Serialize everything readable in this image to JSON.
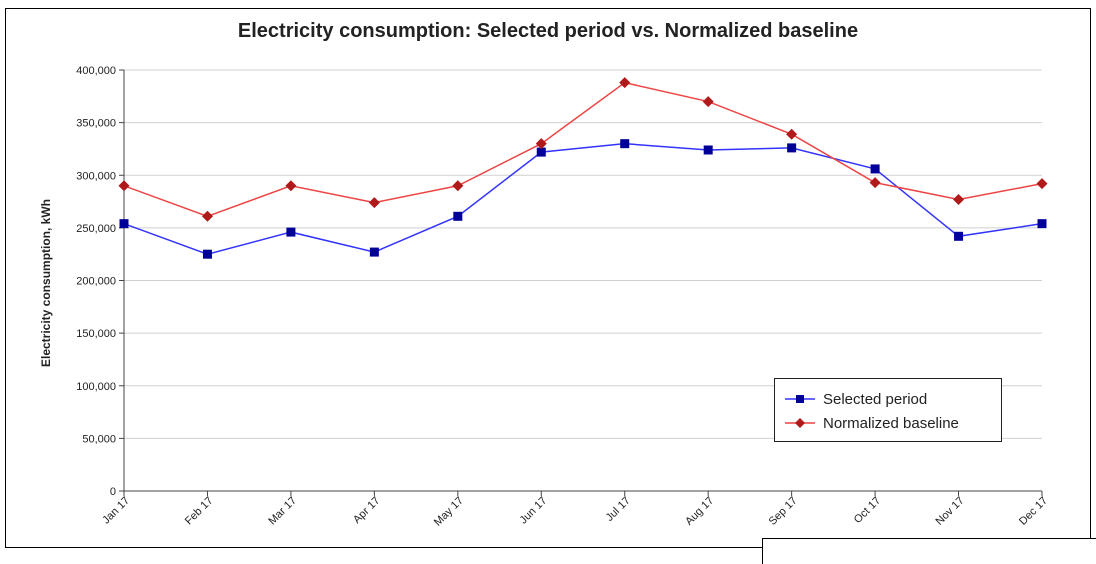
{
  "chart_data": {
    "type": "line",
    "title": "Electricity consumption: Selected period vs. Normalized baseline",
    "xlabel": "",
    "ylabel": "Electricity consumption, kWh",
    "categories": [
      "Jan 17",
      "Feb 17",
      "Mar 17",
      "Apr 17",
      "May 17",
      "Jun 17",
      "Jul 17",
      "Aug 17",
      "Sep 17",
      "Oct 17",
      "Nov 17",
      "Dec 17"
    ],
    "ylim": [
      0,
      400000
    ],
    "yticks": [
      0,
      50000,
      100000,
      150000,
      200000,
      250000,
      300000,
      350000,
      400000
    ],
    "ytick_labels": [
      "0",
      "50,000",
      "100,000",
      "150,000",
      "200,000",
      "250,000",
      "300,000",
      "350,000",
      "400,000"
    ],
    "grid": true,
    "legend_position": "bottom-right",
    "series": [
      {
        "name": "Selected period",
        "color": "#3333ff",
        "marker_color": "#000099",
        "marker": "square",
        "values": [
          254000,
          225000,
          246000,
          227000,
          261000,
          322000,
          330000,
          324000,
          326000,
          306000,
          242000,
          254000
        ]
      },
      {
        "name": "Normalized baseline",
        "color": "#ee4444",
        "marker_color": "#b01a1a",
        "marker": "diamond",
        "values": [
          290000,
          261000,
          290000,
          274000,
          290000,
          330000,
          388000,
          370000,
          339000,
          293000,
          277000,
          292000
        ]
      }
    ]
  }
}
